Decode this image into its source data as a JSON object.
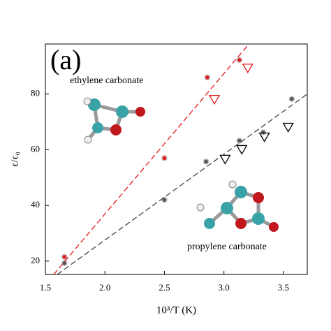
{
  "chart_data": {
    "type": "scatter",
    "xlabel": "10³/T (K)",
    "ylabel": "ϵ/ϵ₀",
    "annotations": [
      "(a)",
      "ethylene carbonate",
      "propylene carbonate"
    ],
    "xlim": [
      1.5,
      3.7
    ],
    "ylim": [
      15.2,
      98
    ],
    "xticks": [
      1.5,
      {
        "value": 2,
        "label": "2.0"
      },
      2.5,
      {
        "value": 3,
        "label": "3.0"
      },
      3.5
    ],
    "yticks": [
      20,
      40,
      60,
      80
    ],
    "series": [
      {
        "marker": "circle",
        "color": "#e41a1c",
        "x": [
          1.66,
          2.5,
          2.86,
          3.13
        ],
        "y": [
          21.5,
          57,
          86,
          92.25
        ]
      },
      {
        "marker": "triangle",
        "color": "#e41a1c",
        "x": [
          2.92,
          3.2
        ],
        "y": [
          78,
          89.25
        ]
      },
      {
        "marker": "circle",
        "color": "#555555",
        "x": [
          1.66,
          2.5,
          2.85,
          3.13,
          3.33,
          3.57
        ],
        "y": [
          19.25,
          42,
          55.75,
          63.25,
          66.25,
          78.25
        ]
      },
      {
        "marker": "triangle",
        "color": "#000000",
        "x": [
          3.01,
          3.15,
          3.34,
          3.54
        ],
        "y": [
          56.5,
          60,
          64.5,
          68
        ]
      },
      {
        "line": "dashed",
        "color": "#e41a1c",
        "x": [
          1.57,
          3.21
        ],
        "y": [
          15.2,
          98
        ]
      },
      {
        "line": "dashed",
        "color": "#444444",
        "x": [
          1.6,
          3.7
        ],
        "y": [
          15.2,
          80
        ]
      }
    ]
  }
}
